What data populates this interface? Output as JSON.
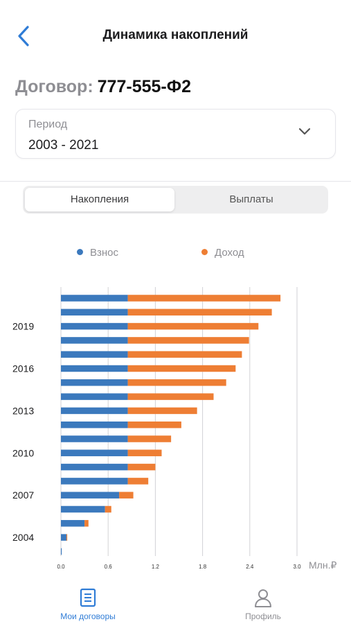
{
  "header": {
    "title": "Динамика накоплений",
    "back_icon": "chevron-left-icon"
  },
  "contract": {
    "label": "Договор:",
    "number": "777-555-Ф2"
  },
  "period": {
    "label": "Период",
    "value": "2003 - 2021"
  },
  "tabs": [
    {
      "label": "Накопления",
      "active": true
    },
    {
      "label": "Выплаты",
      "active": false
    }
  ],
  "legend": [
    {
      "label": "Взнос",
      "color": "#3b79bd"
    },
    {
      "label": "Доход",
      "color": "#ee7e34"
    }
  ],
  "chart_data": {
    "type": "bar",
    "orientation": "horizontal",
    "stacked": true,
    "categories": [
      "2003",
      "2004",
      "2005",
      "2006",
      "2007",
      "2008",
      "2009",
      "2010",
      "2011",
      "2012",
      "2013",
      "2014",
      "2015",
      "2016",
      "2017",
      "2018",
      "2019",
      "2020",
      "2021"
    ],
    "y_tick_labels": [
      "2004",
      "2007",
      "2010",
      "2013",
      "2016",
      "2019"
    ],
    "series": [
      {
        "name": "Взнос",
        "color": "#3b79bd",
        "values": [
          0.01,
          0.07,
          0.3,
          0.56,
          0.74,
          0.85,
          0.85,
          0.85,
          0.85,
          0.85,
          0.85,
          0.85,
          0.85,
          0.85,
          0.85,
          0.85,
          0.85,
          0.85,
          0.85
        ]
      },
      {
        "name": "Доход",
        "color": "#ee7e34",
        "values": [
          0.0,
          0.01,
          0.05,
          0.08,
          0.18,
          0.26,
          0.35,
          0.43,
          0.55,
          0.68,
          0.88,
          1.09,
          1.25,
          1.37,
          1.45,
          1.54,
          1.66,
          1.83,
          1.94
        ]
      }
    ],
    "x_ticks": [
      "0.0",
      "0.6",
      "1.2",
      "1.8",
      "2.4",
      "3.0"
    ],
    "xlim": [
      0,
      3.0
    ],
    "unit": "Млн.₽",
    "grid": true,
    "legend_position": "top"
  },
  "tabbar": [
    {
      "label": "Мои договоры",
      "icon": "document-icon",
      "active": true,
      "color": "#2f7cd6"
    },
    {
      "label": "Профиль",
      "icon": "person-icon",
      "active": false,
      "color": "#8e8e93"
    }
  ]
}
